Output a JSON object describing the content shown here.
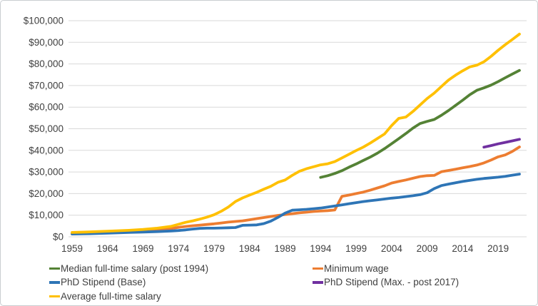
{
  "chart_data": {
    "type": "line",
    "title": "",
    "xlabel": "",
    "ylabel": "",
    "grid": "horizontal",
    "x_axis": {
      "range": [
        1959,
        2022
      ],
      "ticks": [
        1959,
        1964,
        1969,
        1974,
        1979,
        1984,
        1989,
        1994,
        1999,
        2004,
        2009,
        2014,
        2019
      ]
    },
    "y_axis": {
      "range": [
        0,
        100000
      ],
      "ticks": [
        0,
        10000,
        20000,
        30000,
        40000,
        50000,
        60000,
        70000,
        80000,
        90000,
        100000
      ],
      "tick_prefix": "$"
    },
    "colors": {
      "gridline": "#d9d9d9",
      "axis_text": "#404040",
      "background": "#ffffff",
      "median": "#548235",
      "minimum_wage": "#ED7D31",
      "phd_base": "#2E75B6",
      "phd_max": "#7030A0",
      "average": "#FFC000"
    },
    "legend": {
      "position": "bottom",
      "items": [
        {
          "label": "Median full-time salary (post 1994)",
          "color": "#548235",
          "column": 0,
          "row": 0
        },
        {
          "label": "Minimum wage",
          "color": "#ED7D31",
          "column": 1,
          "row": 0
        },
        {
          "label": "PhD Stipend (Base)",
          "color": "#2E75B6",
          "column": 0,
          "row": 1
        },
        {
          "label": "PhD Stipend (Max. - post 2017)",
          "color": "#7030A0",
          "column": 1,
          "row": 1
        },
        {
          "label": "Average full-time salary",
          "color": "#FFC000",
          "column": 0,
          "row": 2
        }
      ]
    },
    "series": [
      {
        "name": "Median full-time salary (post 1994)",
        "color": "#548235",
        "points": [
          [
            1994,
            27500
          ],
          [
            1995,
            28300
          ],
          [
            1996,
            29300
          ],
          [
            1997,
            30600
          ],
          [
            1998,
            32200
          ],
          [
            1999,
            33700
          ],
          [
            2000,
            35300
          ],
          [
            2001,
            36900
          ],
          [
            2002,
            38700
          ],
          [
            2003,
            40800
          ],
          [
            2004,
            43100
          ],
          [
            2005,
            45400
          ],
          [
            2006,
            47800
          ],
          [
            2007,
            50300
          ],
          [
            2008,
            52400
          ],
          [
            2009,
            53400
          ],
          [
            2010,
            54300
          ],
          [
            2011,
            56200
          ],
          [
            2012,
            58400
          ],
          [
            2013,
            60800
          ],
          [
            2014,
            63200
          ],
          [
            2015,
            65700
          ],
          [
            2016,
            67800
          ],
          [
            2017,
            68900
          ],
          [
            2018,
            70200
          ],
          [
            2019,
            71800
          ],
          [
            2020,
            73600
          ],
          [
            2021,
            75300
          ],
          [
            2022,
            77000
          ]
        ]
      },
      {
        "name": "Minimum wage",
        "color": "#ED7D31",
        "points": [
          [
            1959,
            1500
          ],
          [
            1962,
            1800
          ],
          [
            1964,
            2000
          ],
          [
            1967,
            2300
          ],
          [
            1969,
            2600
          ],
          [
            1971,
            3100
          ],
          [
            1972,
            3400
          ],
          [
            1973,
            3900
          ],
          [
            1974,
            4400
          ],
          [
            1975,
            4800
          ],
          [
            1976,
            5100
          ],
          [
            1977,
            5400
          ],
          [
            1978,
            5700
          ],
          [
            1979,
            6000
          ],
          [
            1980,
            6400
          ],
          [
            1981,
            6800
          ],
          [
            1982,
            7100
          ],
          [
            1983,
            7400
          ],
          [
            1984,
            7900
          ],
          [
            1985,
            8400
          ],
          [
            1986,
            8900
          ],
          [
            1987,
            9400
          ],
          [
            1988,
            9900
          ],
          [
            1989,
            10300
          ],
          [
            1990,
            10700
          ],
          [
            1991,
            11100
          ],
          [
            1992,
            11400
          ],
          [
            1993,
            11700
          ],
          [
            1994,
            11900
          ],
          [
            1995,
            12100
          ],
          [
            1996,
            12400
          ],
          [
            1997,
            18700
          ],
          [
            1998,
            19300
          ],
          [
            1999,
            20000
          ],
          [
            2000,
            20700
          ],
          [
            2001,
            21600
          ],
          [
            2002,
            22600
          ],
          [
            2003,
            23600
          ],
          [
            2004,
            24900
          ],
          [
            2005,
            25600
          ],
          [
            2006,
            26300
          ],
          [
            2007,
            27100
          ],
          [
            2008,
            27900
          ],
          [
            2009,
            28300
          ],
          [
            2010,
            28400
          ],
          [
            2011,
            30100
          ],
          [
            2012,
            30700
          ],
          [
            2013,
            31300
          ],
          [
            2014,
            31900
          ],
          [
            2015,
            32500
          ],
          [
            2016,
            33200
          ],
          [
            2017,
            34200
          ],
          [
            2018,
            35500
          ],
          [
            2019,
            37000
          ],
          [
            2020,
            37900
          ],
          [
            2021,
            39500
          ],
          [
            2022,
            41600
          ]
        ]
      },
      {
        "name": "PhD Stipend (Base)",
        "color": "#2E75B6",
        "points": [
          [
            1959,
            1300
          ],
          [
            1962,
            1500
          ],
          [
            1964,
            1700
          ],
          [
            1967,
            2000
          ],
          [
            1969,
            2200
          ],
          [
            1971,
            2400
          ],
          [
            1973,
            2700
          ],
          [
            1974,
            2900
          ],
          [
            1975,
            3200
          ],
          [
            1976,
            3600
          ],
          [
            1977,
            3900
          ],
          [
            1978,
            4000
          ],
          [
            1979,
            4000
          ],
          [
            1980,
            4100
          ],
          [
            1981,
            4200
          ],
          [
            1982,
            4300
          ],
          [
            1983,
            5300
          ],
          [
            1984,
            5400
          ],
          [
            1985,
            5500
          ],
          [
            1986,
            6100
          ],
          [
            1987,
            7300
          ],
          [
            1988,
            9000
          ],
          [
            1989,
            11000
          ],
          [
            1990,
            12300
          ],
          [
            1991,
            12500
          ],
          [
            1992,
            12700
          ],
          [
            1993,
            13000
          ],
          [
            1994,
            13300
          ],
          [
            1995,
            13800
          ],
          [
            1996,
            14300
          ],
          [
            1997,
            14800
          ],
          [
            1998,
            15300
          ],
          [
            1999,
            15800
          ],
          [
            2000,
            16300
          ],
          [
            2001,
            16700
          ],
          [
            2002,
            17100
          ],
          [
            2003,
            17500
          ],
          [
            2004,
            17900
          ],
          [
            2005,
            18200
          ],
          [
            2006,
            18600
          ],
          [
            2007,
            19000
          ],
          [
            2008,
            19500
          ],
          [
            2009,
            20400
          ],
          [
            2010,
            22300
          ],
          [
            2011,
            23700
          ],
          [
            2012,
            24400
          ],
          [
            2013,
            25000
          ],
          [
            2014,
            25600
          ],
          [
            2015,
            26100
          ],
          [
            2016,
            26600
          ],
          [
            2017,
            27000
          ],
          [
            2018,
            27300
          ],
          [
            2019,
            27600
          ],
          [
            2020,
            28000
          ],
          [
            2021,
            28500
          ],
          [
            2022,
            29000
          ]
        ]
      },
      {
        "name": "PhD Stipend (Max. - post 2017)",
        "color": "#7030A0",
        "points": [
          [
            2017,
            41500
          ],
          [
            2018,
            42200
          ],
          [
            2019,
            43000
          ],
          [
            2020,
            43700
          ],
          [
            2021,
            44400
          ],
          [
            2022,
            45100
          ]
        ]
      },
      {
        "name": "Average full-time salary",
        "color": "#FFC000",
        "points": [
          [
            1959,
            2000
          ],
          [
            1961,
            2200
          ],
          [
            1964,
            2600
          ],
          [
            1967,
            3000
          ],
          [
            1969,
            3400
          ],
          [
            1971,
            4000
          ],
          [
            1973,
            4900
          ],
          [
            1974,
            5800
          ],
          [
            1975,
            6700
          ],
          [
            1976,
            7400
          ],
          [
            1977,
            8200
          ],
          [
            1978,
            9100
          ],
          [
            1979,
            10200
          ],
          [
            1980,
            11800
          ],
          [
            1981,
            13800
          ],
          [
            1982,
            16300
          ],
          [
            1983,
            18000
          ],
          [
            1984,
            19300
          ],
          [
            1985,
            20600
          ],
          [
            1986,
            22000
          ],
          [
            1987,
            23400
          ],
          [
            1988,
            25200
          ],
          [
            1989,
            26300
          ],
          [
            1990,
            28400
          ],
          [
            1991,
            30300
          ],
          [
            1992,
            31500
          ],
          [
            1993,
            32400
          ],
          [
            1994,
            33300
          ],
          [
            1995,
            33800
          ],
          [
            1996,
            34800
          ],
          [
            1997,
            36500
          ],
          [
            1998,
            38200
          ],
          [
            1999,
            39900
          ],
          [
            2000,
            41500
          ],
          [
            2001,
            43400
          ],
          [
            2002,
            45500
          ],
          [
            2003,
            47600
          ],
          [
            2004,
            51500
          ],
          [
            2005,
            54800
          ],
          [
            2006,
            55400
          ],
          [
            2007,
            58000
          ],
          [
            2008,
            61000
          ],
          [
            2009,
            64000
          ],
          [
            2010,
            66500
          ],
          [
            2011,
            69500
          ],
          [
            2012,
            72500
          ],
          [
            2013,
            74800
          ],
          [
            2014,
            76800
          ],
          [
            2015,
            78600
          ],
          [
            2016,
            79400
          ],
          [
            2017,
            81000
          ],
          [
            2018,
            83500
          ],
          [
            2019,
            86300
          ],
          [
            2020,
            88900
          ],
          [
            2021,
            91300
          ],
          [
            2022,
            93800
          ]
        ]
      }
    ]
  }
}
